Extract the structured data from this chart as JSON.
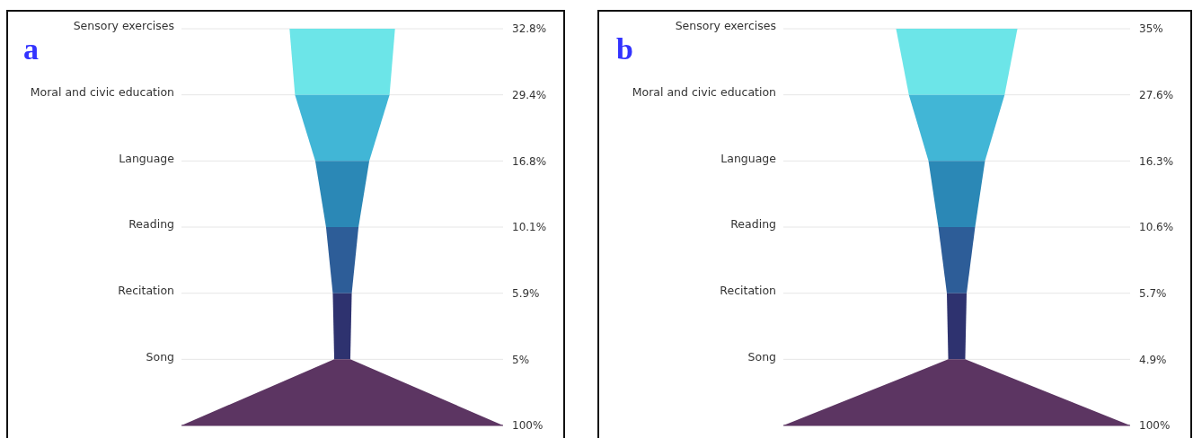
{
  "chart_data": [
    {
      "type": "other",
      "title": "a",
      "categories": [
        "Sensory exercises",
        "Moral and civic education",
        "Language",
        "Reading",
        "Recitation",
        "Song",
        null
      ],
      "values": [
        32.8,
        29.4,
        16.8,
        10.1,
        5.9,
        5,
        100
      ],
      "value_labels": [
        "32.8%",
        "29.4%",
        "16.8%",
        "10.1%",
        "5.9%",
        "5%",
        "100%"
      ],
      "colors": [
        "#6ce5e8",
        "#41b6d6",
        "#2b88b6",
        "#2d5d98",
        "#2e326f",
        "#5c3562",
        "#5c3562"
      ]
    },
    {
      "type": "other",
      "title": "b",
      "categories": [
        "Sensory exercises",
        "Moral and civic education",
        "Language",
        "Reading",
        "Recitation",
        "Song",
        null
      ],
      "values": [
        35,
        27.6,
        16.3,
        10.6,
        5.7,
        4.9,
        100
      ],
      "value_labels": [
        "35%",
        "27.6%",
        "16.3%",
        "10.6%",
        "5.7%",
        "4.9%",
        "100%"
      ],
      "colors": [
        "#6ce5e8",
        "#41b6d6",
        "#2b88b6",
        "#2d5d98",
        "#2e326f",
        "#5c3562",
        "#5c3562"
      ]
    }
  ]
}
